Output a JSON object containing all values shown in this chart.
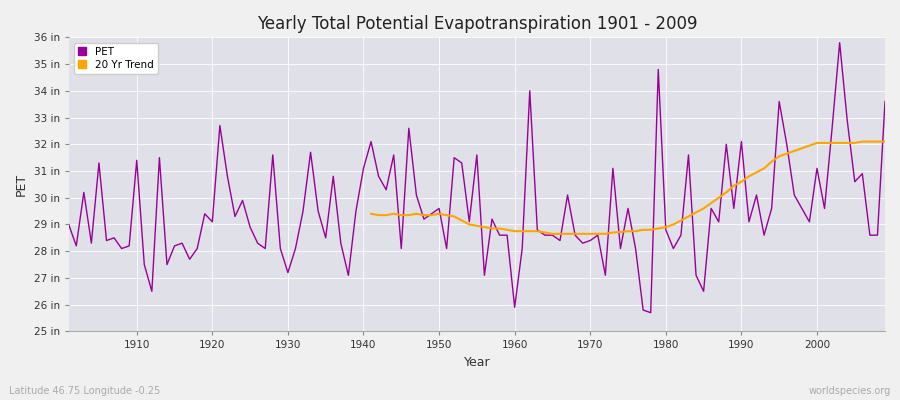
{
  "title": "Yearly Total Potential Evapotranspiration 1901 - 2009",
  "xlabel": "Year",
  "ylabel": "PET",
  "subtitle_left": "Latitude 46.75 Longitude -0.25",
  "subtitle_right": "worldspecies.org",
  "pet_color": "#990099",
  "trend_color": "#FFA500",
  "fig_bg_color": "#f0f0f0",
  "plot_bg_color": "#e0e0e8",
  "grid_color": "#ffffff",
  "ylim_min": 25,
  "ylim_max": 36,
  "xlim_min": 1901,
  "xlim_max": 2009,
  "years": [
    1901,
    1902,
    1903,
    1904,
    1905,
    1906,
    1907,
    1908,
    1909,
    1910,
    1911,
    1912,
    1913,
    1914,
    1915,
    1916,
    1917,
    1918,
    1919,
    1920,
    1921,
    1922,
    1923,
    1924,
    1925,
    1926,
    1927,
    1928,
    1929,
    1930,
    1931,
    1932,
    1933,
    1934,
    1935,
    1936,
    1937,
    1938,
    1939,
    1940,
    1941,
    1942,
    1943,
    1944,
    1945,
    1946,
    1947,
    1948,
    1949,
    1950,
    1951,
    1952,
    1953,
    1954,
    1955,
    1956,
    1957,
    1958,
    1959,
    1960,
    1961,
    1962,
    1963,
    1964,
    1965,
    1966,
    1967,
    1968,
    1969,
    1970,
    1971,
    1972,
    1973,
    1974,
    1975,
    1976,
    1977,
    1978,
    1979,
    1980,
    1981,
    1982,
    1983,
    1984,
    1985,
    1986,
    1987,
    1988,
    1989,
    1990,
    1991,
    1992,
    1993,
    1994,
    1995,
    1996,
    1997,
    1998,
    1999,
    2000,
    2001,
    2002,
    2003,
    2004,
    2005,
    2006,
    2007,
    2008,
    2009
  ],
  "pet": [
    29.0,
    28.2,
    30.2,
    28.3,
    31.3,
    28.4,
    28.5,
    28.1,
    28.2,
    31.4,
    27.5,
    26.5,
    31.5,
    27.5,
    28.2,
    28.3,
    27.7,
    28.1,
    29.4,
    29.1,
    32.7,
    30.8,
    29.3,
    29.9,
    28.9,
    28.3,
    28.1,
    31.6,
    28.1,
    27.2,
    28.1,
    29.5,
    31.7,
    29.5,
    28.5,
    30.8,
    28.3,
    27.1,
    29.5,
    31.1,
    32.1,
    30.8,
    30.3,
    31.6,
    28.1,
    32.6,
    30.1,
    29.2,
    29.4,
    29.6,
    28.1,
    31.5,
    31.3,
    29.1,
    31.6,
    27.1,
    29.2,
    28.6,
    28.6,
    25.9,
    28.1,
    34.0,
    28.8,
    28.6,
    28.6,
    28.4,
    30.1,
    28.6,
    28.3,
    28.4,
    28.6,
    27.1,
    31.1,
    28.1,
    29.6,
    28.1,
    25.8,
    25.7,
    34.8,
    28.8,
    28.1,
    28.6,
    31.6,
    27.1,
    26.5,
    29.6,
    29.1,
    32.0,
    29.6,
    32.1,
    29.1,
    30.1,
    28.6,
    29.6,
    33.6,
    32.0,
    30.1,
    29.6,
    29.1,
    31.1,
    29.6,
    32.6,
    35.8,
    32.9,
    30.6,
    30.9,
    28.6,
    28.6,
    33.6
  ],
  "trend_years": [
    1941,
    1942,
    1943,
    1944,
    1945,
    1946,
    1947,
    1948,
    1949,
    1950,
    1951,
    1952,
    1953,
    1954,
    1955,
    1956,
    1957,
    1958,
    1959,
    1960,
    1961,
    1962,
    1963,
    1964,
    1965,
    1966,
    1967,
    1968,
    1969,
    1970,
    1971,
    1972,
    1973,
    1974,
    1975,
    1976,
    1977,
    1978,
    1979,
    1980,
    1981,
    1982,
    1983,
    1984,
    1985,
    1986,
    1987,
    1988,
    1989,
    1990,
    1991,
    1992,
    1993,
    1994,
    1995,
    1996,
    1997,
    1998,
    1999,
    2000,
    2001,
    2002,
    2003,
    2004,
    2005,
    2006,
    2007,
    2008,
    2009
  ],
  "trend": [
    29.4,
    29.35,
    29.35,
    29.4,
    29.35,
    29.35,
    29.4,
    29.35,
    29.35,
    29.4,
    29.35,
    29.3,
    29.15,
    29.0,
    28.95,
    28.9,
    28.85,
    28.85,
    28.8,
    28.75,
    28.75,
    28.75,
    28.75,
    28.7,
    28.65,
    28.65,
    28.65,
    28.65,
    28.65,
    28.65,
    28.65,
    28.65,
    28.7,
    28.72,
    28.75,
    28.75,
    28.8,
    28.8,
    28.85,
    28.9,
    29.0,
    29.15,
    29.3,
    29.45,
    29.6,
    29.8,
    30.0,
    30.2,
    30.45,
    30.6,
    30.8,
    30.95,
    31.1,
    31.35,
    31.55,
    31.65,
    31.75,
    31.85,
    31.95,
    32.05,
    32.05,
    32.05,
    32.05,
    32.05,
    32.05,
    32.1,
    32.1,
    32.1,
    32.1
  ]
}
